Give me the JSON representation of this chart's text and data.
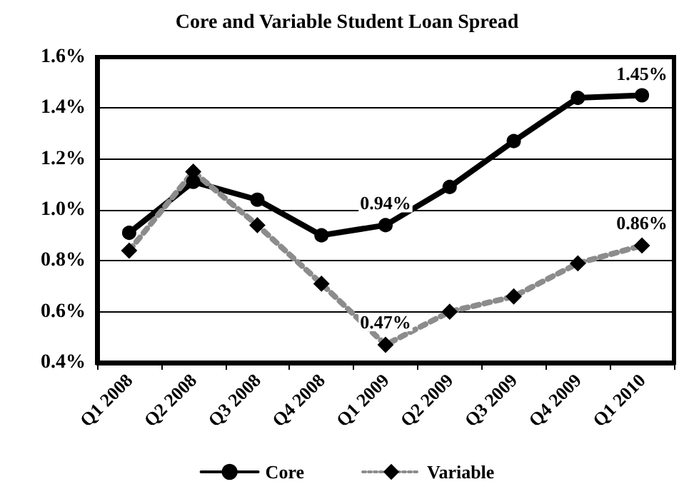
{
  "chart_data": {
    "type": "line",
    "title": "Core and Variable Student Loan Spread",
    "categories": [
      "Q1 2008",
      "Q2 2008",
      "Q3 2008",
      "Q4 2008",
      "Q1 2009",
      "Q2 2009",
      "Q3 2009",
      "Q4 2009",
      "Q1 2010"
    ],
    "series": [
      {
        "name": "Core",
        "color": "#000000",
        "marker": "circle",
        "line_style": "solid",
        "values": [
          0.91,
          1.11,
          1.04,
          0.9,
          0.94,
          1.09,
          1.27,
          1.44,
          1.45
        ],
        "value_labels": [
          null,
          null,
          null,
          null,
          "0.94%",
          null,
          null,
          null,
          "1.45%"
        ]
      },
      {
        "name": "Variable",
        "color": "#8c8c8c",
        "marker": "diamond",
        "line_style": "dotted",
        "values": [
          0.84,
          1.15,
          0.94,
          0.71,
          0.47,
          0.6,
          0.66,
          0.79,
          0.86
        ],
        "value_labels": [
          null,
          null,
          null,
          null,
          "0.47%",
          null,
          null,
          null,
          "0.86%"
        ]
      }
    ],
    "ylim": [
      0.4,
      1.6
    ],
    "yticks": [
      {
        "value": 0.4,
        "label": "0.4%"
      },
      {
        "value": 0.6,
        "label": "0.6%"
      },
      {
        "value": 0.8,
        "label": "0.8%"
      },
      {
        "value": 1.0,
        "label": "1.0%"
      },
      {
        "value": 1.2,
        "label": "1.2%"
      },
      {
        "value": 1.4,
        "label": "1.4%"
      },
      {
        "value": 1.6,
        "label": "1.6%"
      }
    ],
    "grid": "y",
    "legend": "bottom"
  }
}
